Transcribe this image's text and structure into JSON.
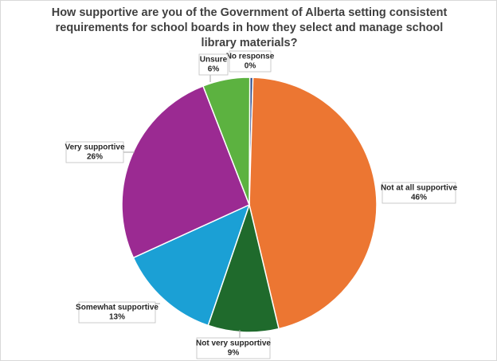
{
  "chart_data": {
    "type": "pie",
    "title": "How supportive are you of the Government of Alberta setting consistent requirements for school boards in how they select and manage school library materials?",
    "categories": [
      "No response",
      "Not at all supportive",
      "Not very supportive",
      "Somewhat supportive",
      "Very supportive",
      "Unsure"
    ],
    "values": [
      0.4,
      46,
      9,
      13,
      26,
      6
    ],
    "value_labels": [
      "0%",
      "46%",
      "9%",
      "13%",
      "26%",
      "6%"
    ],
    "colors": [
      "#2e4e8c",
      "#ec7632",
      "#1f6a2c",
      "#1ba0d5",
      "#9b2a92",
      "#5cb240"
    ]
  }
}
